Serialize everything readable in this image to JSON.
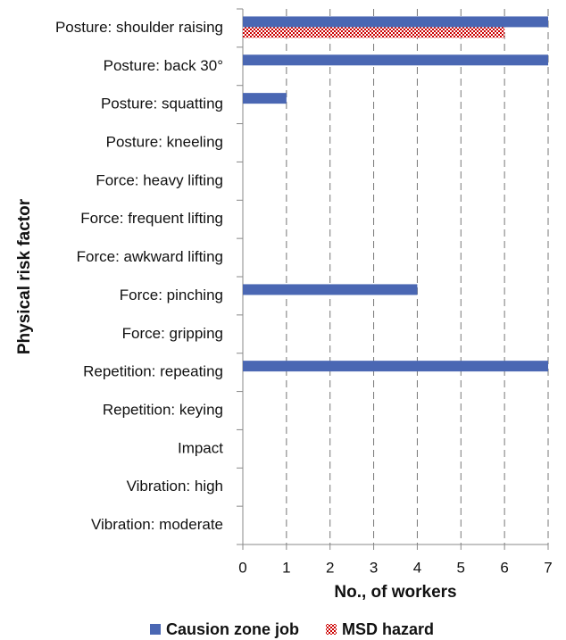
{
  "chart_data": {
    "type": "bar",
    "orientation": "horizontal",
    "xlabel": "No., of workers",
    "ylabel": "Physical risk factor",
    "categories": [
      "Posture: shoulder raising",
      "Posture: back 30°",
      "Posture: squatting",
      "Posture: kneeling",
      "Force: heavy lifting",
      "Force: frequent lifting",
      "Force: awkward lifting",
      "Force: pinching",
      "Force: gripping",
      "Repetition: repeating",
      "Repetition: keying",
      "Impact",
      "Vibration: high",
      "Vibration: moderate"
    ],
    "series": [
      {
        "name": "Causion zone job",
        "color": "#4a67b3",
        "values": [
          7,
          7,
          1,
          0,
          0,
          0,
          0,
          4,
          0,
          7,
          0,
          0,
          0,
          0
        ]
      },
      {
        "name": "MSD hazard",
        "color": "#cc0000",
        "pattern": "checker",
        "values": [
          6,
          0,
          0,
          0,
          0,
          0,
          0,
          0,
          0,
          0,
          0,
          0,
          0,
          0
        ]
      }
    ],
    "xlim": [
      0,
      7
    ],
    "xticks": [
      0,
      1,
      2,
      3,
      4,
      5,
      6,
      7
    ],
    "grid": true,
    "legend": "bottom"
  }
}
